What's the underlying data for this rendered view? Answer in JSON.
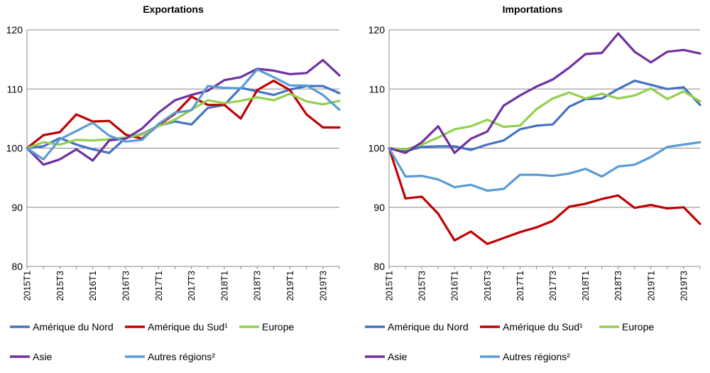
{
  "chart_data": [
    {
      "type": "line",
      "title": "Exportations",
      "xlabel": "",
      "ylabel": "",
      "ylim": [
        80,
        120
      ],
      "yticks": [
        80,
        90,
        100,
        110,
        120
      ],
      "grid": true,
      "legend_position": "bottom",
      "x": [
        "2015T1",
        "2015T2",
        "2015T3",
        "2015T4",
        "2016T1",
        "2016T2",
        "2016T3",
        "2016T4",
        "2017T1",
        "2017T2",
        "2017T3",
        "2017T4",
        "2018T1",
        "2018T2",
        "2018T3",
        "2018T4",
        "2019T1",
        "2019T2",
        "2019T3",
        "2019T4"
      ],
      "x_tick_labels": [
        "2015T1",
        "2015T3",
        "2016T1",
        "2016T3",
        "2017T1",
        "2017T3",
        "2018T1",
        "2018T3",
        "2019T1",
        "2019T3"
      ],
      "series": [
        {
          "name": "Amérique du Nord",
          "color": "#4472C4",
          "values": [
            100,
            100.3,
            101.7,
            100.6,
            99.8,
            99.2,
            101.7,
            102.4,
            103.8,
            104.5,
            104.0,
            106.8,
            107.3,
            110.2,
            109.6,
            109.0,
            109.9,
            110.5,
            110.5,
            109.3
          ]
        },
        {
          "name": "Amérique du Sud¹",
          "color": "#C00000",
          "values": [
            100,
            102.2,
            102.7,
            105.7,
            104.5,
            104.6,
            102.3,
            101.6,
            103.9,
            105.8,
            108.7,
            107.3,
            107.3,
            105.0,
            109.8,
            111.4,
            109.8,
            105.7,
            103.5,
            103.5
          ]
        },
        {
          "name": "Europe",
          "color": "#92D050",
          "values": [
            100,
            101.0,
            100.6,
            101.4,
            101.3,
            101.5,
            101.8,
            102.3,
            103.7,
            104.8,
            106.5,
            108.1,
            107.6,
            108.0,
            108.6,
            108.1,
            109.2,
            107.9,
            107.4,
            108.0
          ]
        },
        {
          "name": "Asie",
          "color": "#7030A0",
          "values": [
            100,
            97.2,
            98.1,
            99.8,
            97.9,
            101.3,
            101.6,
            103.3,
            106.0,
            108.1,
            109.0,
            109.7,
            111.5,
            112.0,
            113.4,
            113.1,
            112.5,
            112.7,
            114.9,
            112.3
          ]
        },
        {
          "name": "Autres régions²",
          "color": "#5B9BD5",
          "values": [
            100,
            98.1,
            101.5,
            102.9,
            104.3,
            102.1,
            101.1,
            101.4,
            104.1,
            106.0,
            106.4,
            110.5,
            110.2,
            110.1,
            113.3,
            112.0,
            110.6,
            110.6,
            109.0,
            106.5
          ]
        }
      ]
    },
    {
      "type": "line",
      "title": "Importations",
      "xlabel": "",
      "ylabel": "",
      "ylim": [
        80,
        120
      ],
      "yticks": [
        80,
        90,
        100,
        110,
        120
      ],
      "grid": true,
      "legend_position": "bottom",
      "x": [
        "2015T1",
        "2015T2",
        "2015T3",
        "2015T4",
        "2016T1",
        "2016T2",
        "2016T3",
        "2016T4",
        "2017T1",
        "2017T2",
        "2017T3",
        "2017T4",
        "2018T1",
        "2018T2",
        "2018T3",
        "2018T4",
        "2019T1",
        "2019T2",
        "2019T3",
        "2019T4"
      ],
      "x_tick_labels": [
        "2015T1",
        "2015T3",
        "2016T1",
        "2016T3",
        "2017T1",
        "2017T3",
        "2018T1",
        "2018T3",
        "2019T1",
        "2019T3"
      ],
      "series": [
        {
          "name": "Amérique du Nord",
          "color": "#4472C4",
          "values": [
            100,
            99.5,
            100.2,
            100.3,
            100.3,
            99.7,
            100.6,
            101.3,
            103.2,
            103.8,
            104.0,
            107.0,
            108.3,
            108.4,
            110.0,
            111.4,
            110.7,
            110.0,
            110.3,
            107.3
          ]
        },
        {
          "name": "Amérique du Sud¹",
          "color": "#C00000",
          "values": [
            100,
            91.5,
            91.8,
            88.9,
            84.4,
            85.9,
            83.8,
            84.8,
            85.8,
            86.6,
            87.7,
            90.1,
            90.6,
            91.4,
            92.0,
            89.9,
            90.4,
            89.8,
            90.0,
            87.2
          ]
        },
        {
          "name": "Europe",
          "color": "#92D050",
          "values": [
            100,
            99.8,
            100.6,
            101.8,
            103.2,
            103.7,
            104.8,
            103.6,
            103.8,
            106.6,
            108.4,
            109.4,
            108.4,
            109.2,
            108.4,
            108.9,
            110.1,
            108.3,
            109.6,
            107.9
          ]
        },
        {
          "name": "Asie",
          "color": "#7030A0",
          "values": [
            100,
            99.2,
            101.0,
            103.7,
            99.2,
            101.6,
            102.8,
            107.2,
            108.9,
            110.4,
            111.6,
            113.6,
            115.9,
            116.1,
            119.4,
            116.3,
            114.5,
            116.3,
            116.6,
            116.0
          ]
        },
        {
          "name": "Autres régions²",
          "color": "#5B9BD5",
          "values": [
            100,
            95.2,
            95.3,
            94.7,
            93.4,
            93.8,
            92.8,
            93.1,
            95.5,
            95.5,
            95.3,
            95.7,
            96.5,
            95.2,
            96.9,
            97.2,
            98.5,
            100.2,
            100.6,
            101.0
          ]
        }
      ]
    }
  ]
}
